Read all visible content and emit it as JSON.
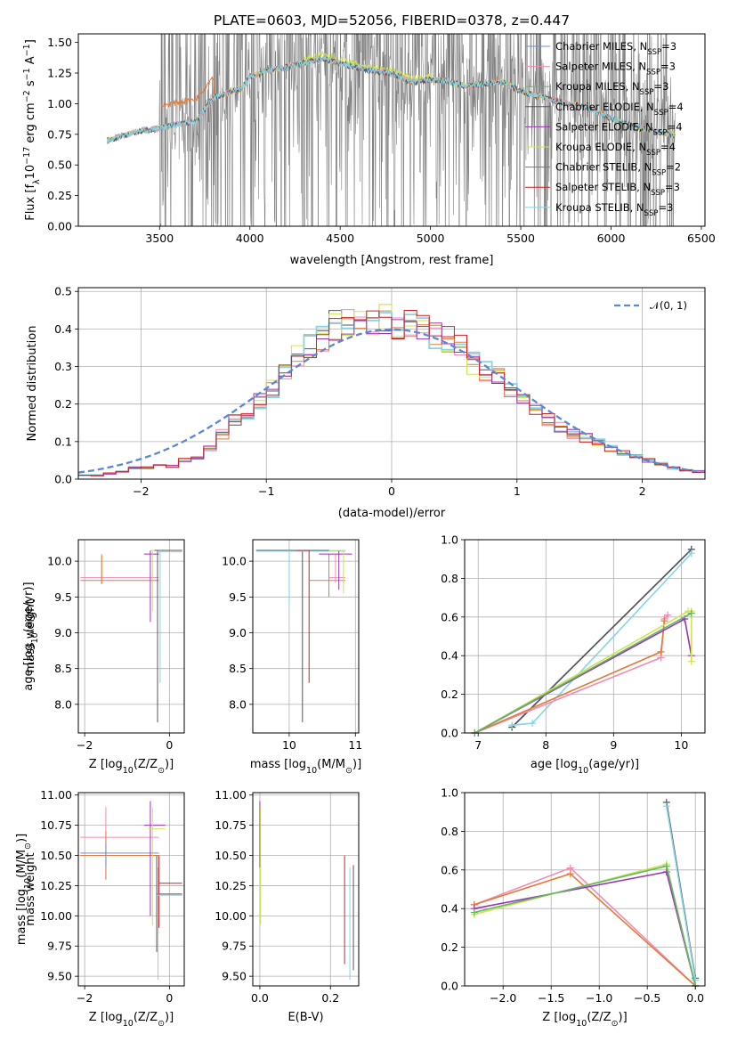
{
  "figure_title": "PLATE=0603, MJD=52056, FIBERID=0378, z=0.447",
  "palette": {
    "Chabrier MILES": "#6a8fd6",
    "Salpeter MILES": "#f08cb4",
    "Kroupa MILES": "#62b66a",
    "Chabrier ELODIE": "#555555",
    "Salpeter ELODIE": "#9b34b3",
    "Kroupa ELODIE": "#cfe34f",
    "Chabrier STELIB": "#777777",
    "Salpeter STELIB": "#cc2222",
    "Kroupa STELIB": "#88d4e2",
    "data": "#808080",
    "orange": "#e07b39",
    "normal": "#5b87d6"
  },
  "chart_data": [
    {
      "id": "spectrum",
      "type": "line",
      "xlabel": "wavelength [Angstrom, rest frame]",
      "ylabel": "Flux [f_λ 10^-17 erg cm^-2 s^-1 A^-1]",
      "xlim": [
        3050,
        6520
      ],
      "ylim": [
        0,
        1.57
      ],
      "xticks": [
        3500,
        4000,
        4500,
        5000,
        5500,
        6000,
        6500
      ],
      "yticks": [
        0.0,
        0.25,
        0.5,
        0.75,
        1.0,
        1.25,
        1.5
      ],
      "ytick_labels": [
        "0.00",
        "0.25",
        "0.50",
        "0.75",
        "1.00",
        "1.25",
        "1.50"
      ],
      "grid": false,
      "legend_position": "upper right",
      "legend": [
        {
          "imf": "Chabrier",
          "lib": "MILES",
          "nssp": "3"
        },
        {
          "imf": "Salpeter",
          "lib": "MILES",
          "nssp": "3"
        },
        {
          "imf": "Kroupa",
          "lib": "MILES",
          "nssp": "3"
        },
        {
          "imf": "Chabrier",
          "lib": "ELODIE",
          "nssp": "4"
        },
        {
          "imf": "Salpeter",
          "lib": "ELODIE",
          "nssp": "4"
        },
        {
          "imf": "Kroupa",
          "lib": "ELODIE",
          "nssp": "4"
        },
        {
          "imf": "Chabrier",
          "lib": "STELIB",
          "nssp": "2"
        },
        {
          "imf": "Salpeter",
          "lib": "STELIB",
          "nssp": "3"
        },
        {
          "imf": "Kroupa",
          "lib": "STELIB",
          "nssp": "3"
        }
      ],
      "model_continuum": [
        [
          3210,
          0.7
        ],
        [
          3300,
          0.74
        ],
        [
          3400,
          0.78
        ],
        [
          3500,
          0.8
        ],
        [
          3600,
          0.83
        ],
        [
          3700,
          0.86
        ],
        [
          3800,
          1.05
        ],
        [
          3900,
          1.1
        ],
        [
          3950,
          1.12
        ],
        [
          4000,
          1.22
        ],
        [
          4100,
          1.27
        ],
        [
          4200,
          1.3
        ],
        [
          4300,
          1.33
        ],
        [
          4400,
          1.37
        ],
        [
          4500,
          1.33
        ],
        [
          4600,
          1.29
        ],
        [
          4700,
          1.26
        ],
        [
          4800,
          1.24
        ],
        [
          4900,
          1.17
        ],
        [
          5000,
          1.2
        ],
        [
          5100,
          1.18
        ],
        [
          5200,
          1.14
        ],
        [
          5300,
          1.16
        ],
        [
          5400,
          1.18
        ],
        [
          5500,
          1.1
        ],
        [
          5600,
          1.06
        ],
        [
          5700,
          1.02
        ],
        [
          5800,
          0.99
        ],
        [
          5900,
          0.95
        ],
        [
          6000,
          0.88
        ],
        [
          6100,
          0.83
        ],
        [
          6200,
          0.79
        ],
        [
          6300,
          0.76
        ],
        [
          6350,
          0.75
        ]
      ]
    },
    {
      "id": "residuals",
      "type": "line",
      "xlabel": "(data-model)/error",
      "ylabel": "Normed distribution",
      "xlim": [
        -2.5,
        2.5
      ],
      "ylim": [
        0,
        0.51
      ],
      "xticks": [
        -2,
        -1,
        0,
        1,
        2
      ],
      "yticks": [
        0.0,
        0.1,
        0.2,
        0.3,
        0.4,
        0.5
      ],
      "ytick_labels": [
        "0.0",
        "0.1",
        "0.2",
        "0.3",
        "0.4",
        "0.5"
      ],
      "grid": true,
      "legend_position": "upper right",
      "legend": [
        "𝒩(0, 1)"
      ],
      "histogram_bins": [
        -2.5,
        2.5,
        50
      ],
      "histogram_values": [
        0.01,
        0.01,
        0.015,
        0.02,
        0.03,
        0.03,
        0.04,
        0.035,
        0.05,
        0.06,
        0.08,
        0.12,
        0.16,
        0.18,
        0.21,
        0.24,
        0.28,
        0.33,
        0.36,
        0.37,
        0.41,
        0.43,
        0.44,
        0.42,
        0.43,
        0.4,
        0.42,
        0.41,
        0.39,
        0.37,
        0.36,
        0.31,
        0.29,
        0.27,
        0.24,
        0.21,
        0.19,
        0.16,
        0.14,
        0.12,
        0.11,
        0.1,
        0.08,
        0.07,
        0.06,
        0.05,
        0.04,
        0.03,
        0.025,
        0.02
      ]
    },
    {
      "id": "age_vs_Z",
      "type": "errorbar",
      "xlabel": "Z [log10(Z/Z_⊙)]",
      "ylabel": "age  [log10(age/yr)]",
      "xlim": [
        -2.15,
        0.35
      ],
      "ylim": [
        7.6,
        10.3
      ],
      "xticks": [
        -2,
        0
      ],
      "yticks": [
        8.0,
        8.5,
        9.0,
        9.5,
        10.0
      ],
      "ytick_labels": [
        "8.0",
        "8.5",
        "9.0",
        "9.5",
        "10.0"
      ],
      "grid": true
    },
    {
      "id": "age_vs_mass",
      "type": "errorbar",
      "xlabel": "mass [log10(M/M_⊙)]",
      "xlim": [
        9.45,
        11.05
      ],
      "ylim": [
        7.6,
        10.3
      ],
      "xticks": [
        10,
        11
      ],
      "yticks": [
        8.0,
        8.5,
        9.0,
        9.5,
        10.0
      ],
      "ytick_labels": [
        "8.0",
        "8.5",
        "9.0",
        "9.5",
        "10.0"
      ],
      "grid": true
    },
    {
      "id": "weight_vs_age",
      "type": "line",
      "xlabel": "age  [log10(age/yr)]",
      "ylabel": "mass weight",
      "xlim": [
        6.8,
        10.35
      ],
      "ylim": [
        0,
        1.0
      ],
      "xticks": [
        7,
        8,
        9,
        10
      ],
      "yticks": [
        0.0,
        0.2,
        0.4,
        0.6,
        0.8,
        1.0
      ],
      "ytick_labels": [
        "0.0",
        "0.2",
        "0.4",
        "0.6",
        "0.8",
        "1.0"
      ],
      "grid": true,
      "series": [
        {
          "key": "Chabrier MILES",
          "x": [
            7.5,
            10.15
          ],
          "y": [
            0.03,
            0.95
          ]
        },
        {
          "key": "Chabrier ELODIE",
          "x": [
            7.5,
            10.15
          ],
          "y": [
            0.03,
            0.95
          ]
        },
        {
          "key": "Kroupa STELIB",
          "x": [
            7.5,
            7.8,
            10.15
          ],
          "y": [
            0.04,
            0.05,
            0.93
          ]
        },
        {
          "key": "Salpeter MILES",
          "x": [
            6.95,
            9.7,
            9.75,
            9.8
          ],
          "y": [
            0.0,
            0.39,
            0.59,
            0.61
          ]
        },
        {
          "key": "orange",
          "x": [
            6.95,
            9.7,
            9.75
          ],
          "y": [
            0.0,
            0.42,
            0.58
          ]
        },
        {
          "key": "Salpeter ELODIE",
          "x": [
            6.95,
            10.05,
            10.15
          ],
          "y": [
            0.0,
            0.59,
            0.4
          ]
        },
        {
          "key": "Kroupa ELODIE",
          "x": [
            6.95,
            10.1,
            10.15,
            10.15
          ],
          "y": [
            0.0,
            0.63,
            0.63,
            0.37
          ]
        },
        {
          "key": "Kroupa MILES",
          "x": [
            6.95,
            10.15
          ],
          "y": [
            0.0,
            0.62
          ]
        }
      ]
    },
    {
      "id": "mass_vs_Z",
      "type": "errorbar",
      "xlabel": "Z [log10(Z/Z_⊙)]",
      "ylabel": "mass [log10(M/M_⊙)]",
      "xlim": [
        -2.15,
        0.35
      ],
      "ylim": [
        9.42,
        11.02
      ],
      "xticks": [
        -2,
        0
      ],
      "yticks": [
        9.5,
        9.75,
        10.0,
        10.25,
        10.5,
        10.75,
        11.0
      ],
      "ytick_labels": [
        "9.50",
        "9.75",
        "10.00",
        "10.25",
        "10.50",
        "10.75",
        "11.00"
      ],
      "grid": true
    },
    {
      "id": "mass_vs_EBV",
      "type": "errorbar",
      "xlabel": "E(B-V)",
      "xlim": [
        -0.02,
        0.28
      ],
      "ylim": [
        9.42,
        11.02
      ],
      "xticks": [
        0.0,
        0.2
      ],
      "xtick_labels": [
        "0.0",
        "0.2"
      ],
      "yticks": [
        9.5,
        9.75,
        10.0,
        10.25,
        10.5,
        10.75,
        11.0
      ],
      "ytick_labels": [
        "9.50",
        "9.75",
        "10.00",
        "10.25",
        "10.50",
        "10.75",
        "11.00"
      ],
      "grid": true
    },
    {
      "id": "weight_vs_Z",
      "type": "line",
      "xlabel": "Z [log10(Z/Z_⊙)]",
      "ylabel": "mass weight",
      "xlim": [
        -2.4,
        0.1
      ],
      "ylim": [
        0,
        1.0
      ],
      "xticks": [
        -2.0,
        -1.5,
        -1.0,
        -0.5,
        0.0
      ],
      "xtick_labels": [
        "−2.0",
        "−1.5",
        "−1.0",
        "−0.5",
        "0.0"
      ],
      "yticks": [
        0.0,
        0.2,
        0.4,
        0.6,
        0.8,
        1.0
      ],
      "ytick_labels": [
        "0.0",
        "0.2",
        "0.4",
        "0.6",
        "0.8",
        "1.0"
      ],
      "grid": true,
      "series": [
        {
          "key": "Chabrier ELODIE",
          "x": [
            -0.3,
            0.0
          ],
          "y": [
            0.95,
            0.04
          ]
        },
        {
          "key": "Kroupa STELIB",
          "x": [
            -0.3,
            0.0
          ],
          "y": [
            0.93,
            0.03
          ]
        },
        {
          "key": "Salpeter MILES",
          "x": [
            -2.3,
            -1.3,
            0.0
          ],
          "y": [
            0.42,
            0.61,
            0.0
          ]
        },
        {
          "key": "orange",
          "x": [
            -2.3,
            -1.3,
            0.0
          ],
          "y": [
            0.42,
            0.58,
            0.0
          ]
        },
        {
          "key": "Salpeter ELODIE",
          "x": [
            -2.3,
            -0.3,
            0.0
          ],
          "y": [
            0.4,
            0.59,
            0.0
          ]
        },
        {
          "key": "Kroupa ELODIE",
          "x": [
            -2.3,
            -0.3,
            0.0
          ],
          "y": [
            0.37,
            0.63,
            0.0
          ]
        },
        {
          "key": "Kroupa MILES",
          "x": [
            -2.3,
            -0.3,
            0.0
          ],
          "y": [
            0.38,
            0.62,
            0.0
          ]
        }
      ]
    }
  ]
}
